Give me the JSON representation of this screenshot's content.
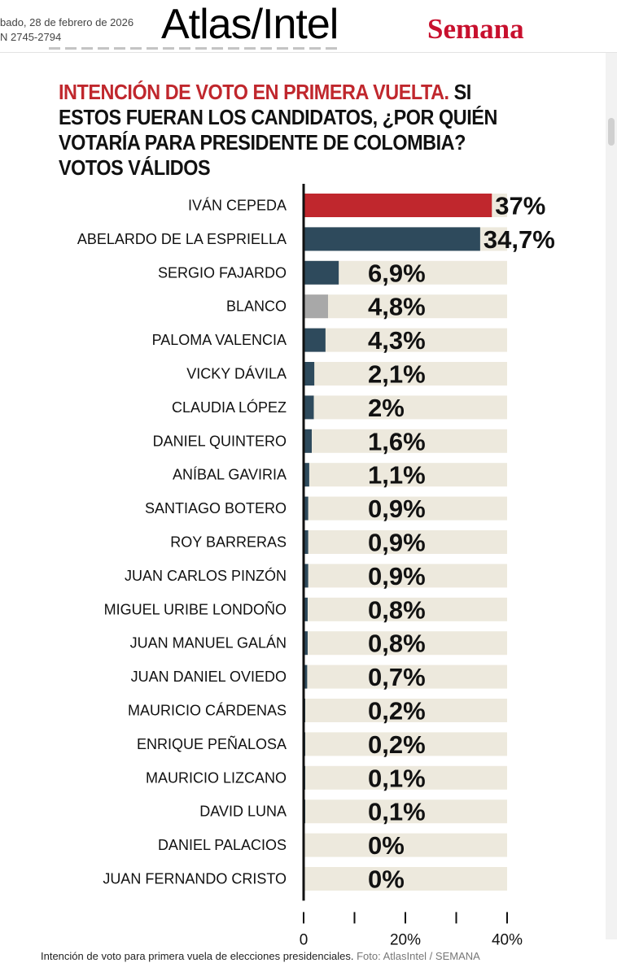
{
  "header": {
    "date": "bado, 28 de febrero de 2026",
    "issn": "N 2745-2794",
    "brand_main": "Atlas/Intel",
    "brand_secondary": "Semana"
  },
  "colors": {
    "highlight": "#c0272d",
    "candidate": "#2e4a5c",
    "blank": "#a8a8a8",
    "track": "#ede9dd"
  },
  "chart_data": {
    "type": "bar",
    "orientation": "horizontal",
    "title_highlight": "INTENCIÓN DE VOTO EN PRIMERA VUELTA.",
    "title_rest": "SI ESTOS FUERAN LOS CANDIDATOS, ¿POR QUIÉN VOTARÍA PARA PRESIDENTE DE COLOMBIA? VOTOS VÁLIDOS",
    "unit": "%",
    "xlim": [
      0,
      40
    ],
    "xticks": [
      0,
      20,
      40
    ],
    "xtick_labels": [
      "0",
      "20%",
      "40%"
    ],
    "categories": [
      "IVÁN CEPEDA",
      "ABELARDO DE LA ESPRIELLA",
      "SERGIO FAJARDO",
      "BLANCO",
      "PALOMA VALENCIA",
      "VICKY DÁVILA",
      "CLAUDIA LÓPEZ",
      "DANIEL QUINTERO",
      "ANÍBAL GAVIRIA",
      "SANTIAGO BOTERO",
      "ROY BARRERAS",
      "JUAN CARLOS PINZÓN",
      "MIGUEL URIBE LONDOÑO",
      "JUAN MANUEL GALÁN",
      "JUAN DANIEL OVIEDO",
      "MAURICIO CÁRDENAS",
      "ENRIQUE PEÑALOSA",
      "MAURICIO LIZCANO",
      "DAVID LUNA",
      "DANIEL PALACIOS",
      "JUAN FERNANDO CRISTO"
    ],
    "values": [
      37,
      34.7,
      6.9,
      4.8,
      4.3,
      2.1,
      2,
      1.6,
      1.1,
      0.9,
      0.9,
      0.9,
      0.8,
      0.8,
      0.7,
      0.2,
      0.2,
      0.1,
      0.1,
      0,
      0
    ],
    "value_labels": [
      "37%",
      "34,7%",
      "6,9%",
      "4,8%",
      "4,3%",
      "2,1%",
      "2%",
      "1,6%",
      "1,1%",
      "0,9%",
      "0,9%",
      "0,9%",
      "0,8%",
      "0,8%",
      "0,7%",
      "0,2%",
      "0,2%",
      "0,1%",
      "0,1%",
      "0%",
      "0%"
    ],
    "color_groups": [
      "highlight",
      "candidate",
      "candidate",
      "blank",
      "candidate",
      "candidate",
      "candidate",
      "candidate",
      "candidate",
      "candidate",
      "candidate",
      "candidate",
      "candidate",
      "candidate",
      "candidate",
      "candidate",
      "candidate",
      "candidate",
      "candidate",
      "candidate",
      "candidate"
    ],
    "grid": false,
    "legend": "none"
  },
  "caption": {
    "text": "Intención de voto para primera vuela de elecciones presidenciales.",
    "source": "Foto: AtlasIntel / SEMANA"
  }
}
